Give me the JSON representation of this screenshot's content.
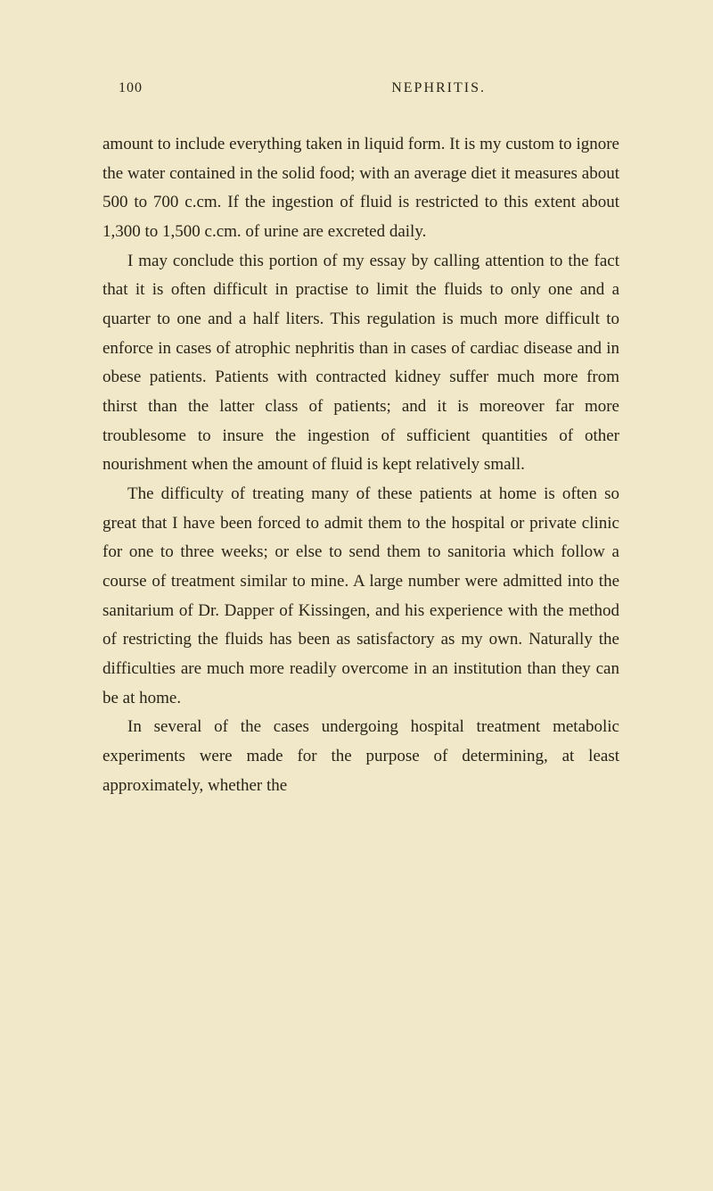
{
  "page": {
    "number": "100",
    "chapter_title": "NEPHRITIS.",
    "background_color": "#f0e8c8",
    "text_color": "#2a2418",
    "body_fontsize": 19,
    "header_fontsize": 16,
    "line_height": 1.72
  },
  "paragraphs": {
    "p1": "amount to include everything taken in liquid form. It is my custom to ignore the water contained in the solid food; with an average diet it measures about 500 to 700 c.cm. If the ingestion of fluid is restricted to this extent about 1,300 to 1,500 c.cm. of urine are excreted daily.",
    "p2": "I may conclude this portion of my essay by calling attention to the fact that it is often difficult in practise to limit the fluids to only one and a quarter to one and a half liters. This regulation is much more difficult to enforce in cases of atrophic nephritis than in cases of cardiac disease and in obese patients. Patients with contracted kidney suffer much more from thirst than the latter class of patients; and it is moreover far more troublesome to insure the ingestion of sufficient quantities of other nourishment when the amount of fluid is kept relatively small.",
    "p3": "The difficulty of treating many of these patients at home is often so great that I have been forced to admit them to the hospital or private clinic for one to three weeks; or else to send them to sanitoria which follow a course of treatment similar to mine. A large number were admitted into the sanitarium of Dr. Dapper of Kissingen, and his experience with the method of restricting the fluids has been as satisfactory as my own. Naturally the difficulties are much more readily overcome in an institution than they can be at home.",
    "p4": "In several of the cases undergoing hospital treatment metabolic experiments were made for the purpose of determining, at least approximately, whether the"
  }
}
